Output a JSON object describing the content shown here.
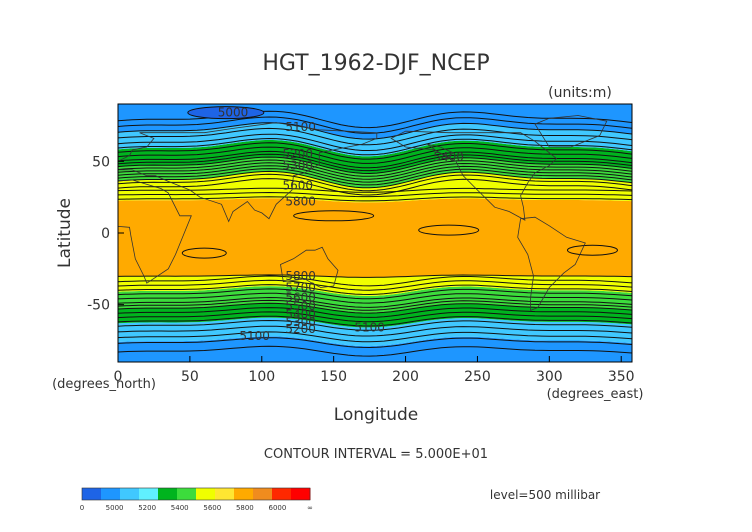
{
  "chart_data": {
    "type": "heatmap",
    "title": "HGT_1962-DJF_NCEP",
    "units": "(units:m)",
    "xlabel": "Longitude",
    "ylabel": "Latitude",
    "x_unit": "(degrees_east)",
    "y_unit": "(degrees_north)",
    "xlim": [
      0,
      357.5
    ],
    "ylim": [
      -90,
      90
    ],
    "xticks": [
      "0",
      "50",
      "100",
      "150",
      "200",
      "250",
      "300",
      "350"
    ],
    "xtick_values": [
      0,
      50,
      100,
      150,
      200,
      250,
      300,
      350
    ],
    "yticks": [
      "50",
      "0",
      "-50"
    ],
    "ytick_values": [
      50,
      0,
      -50
    ],
    "contour_interval": "CONTOUR INTERVAL = 5.000E+01",
    "level": "level=500 millibar",
    "colorbar": {
      "ticks": [
        "0",
        "5000",
        "5200",
        "5400",
        "5600",
        "5800",
        "6000",
        "∞"
      ],
      "colors": [
        "#1e64e6",
        "#1e96ff",
        "#40c8ff",
        "#60f0ff",
        "#00b41e",
        "#3cdc3c",
        "#f0ff00",
        "#ffe632",
        "#ffaa00",
        "#f08c1e",
        "#ff2800",
        "#ff0000"
      ]
    },
    "bands": [
      {
        "lat": [
          -90,
          -75
        ],
        "color": "#1e96ff"
      },
      {
        "lat": [
          -75,
          -62
        ],
        "color": "#40c8ff"
      },
      {
        "lat": [
          -62,
          -52
        ],
        "color": "#00b41e"
      },
      {
        "lat": [
          -52,
          -40
        ],
        "color": "#3cdc3c"
      },
      {
        "lat": [
          -40,
          -30
        ],
        "color": "#f0ff00"
      },
      {
        "lat": [
          -30,
          23
        ],
        "color": "#ffaa00"
      },
      {
        "lat": [
          23,
          38
        ],
        "color": "#f0ff00"
      },
      {
        "lat": [
          38,
          48
        ],
        "color": "#3cdc3c"
      },
      {
        "lat": [
          48,
          60
        ],
        "color": "#00b41e"
      },
      {
        "lat": [
          60,
          72
        ],
        "color": "#40c8ff"
      },
      {
        "lat": [
          72,
          90
        ],
        "color": "#1e96ff"
      }
    ],
    "contour_labels": [
      {
        "text": "5000",
        "lon": 80,
        "lat": 84
      },
      {
        "text": "5100",
        "lon": 127,
        "lat": 74
      },
      {
        "text": "5200",
        "lon": 125,
        "lat": 55
      },
      {
        "text": "5300",
        "lon": 125,
        "lat": 47
      },
      {
        "text": "5400",
        "lon": 230,
        "lat": 53
      },
      {
        "text": "5600",
        "lon": 125,
        "lat": 33
      },
      {
        "text": "5800",
        "lon": 127,
        "lat": 22
      },
      {
        "text": "5800",
        "lon": 127,
        "lat": -30
      },
      {
        "text": "5700",
        "lon": 127,
        "lat": -38
      },
      {
        "text": "5600",
        "lon": 127,
        "lat": -45
      },
      {
        "text": "5500",
        "lon": 127,
        "lat": -51
      },
      {
        "text": "5400",
        "lon": 127,
        "lat": -57
      },
      {
        "text": "5300",
        "lon": 127,
        "lat": -62
      },
      {
        "text": "5200",
        "lon": 127,
        "lat": -67
      },
      {
        "text": "5100",
        "lon": 95,
        "lat": -72
      },
      {
        "text": "5100",
        "lon": 175,
        "lat": -66
      }
    ]
  }
}
